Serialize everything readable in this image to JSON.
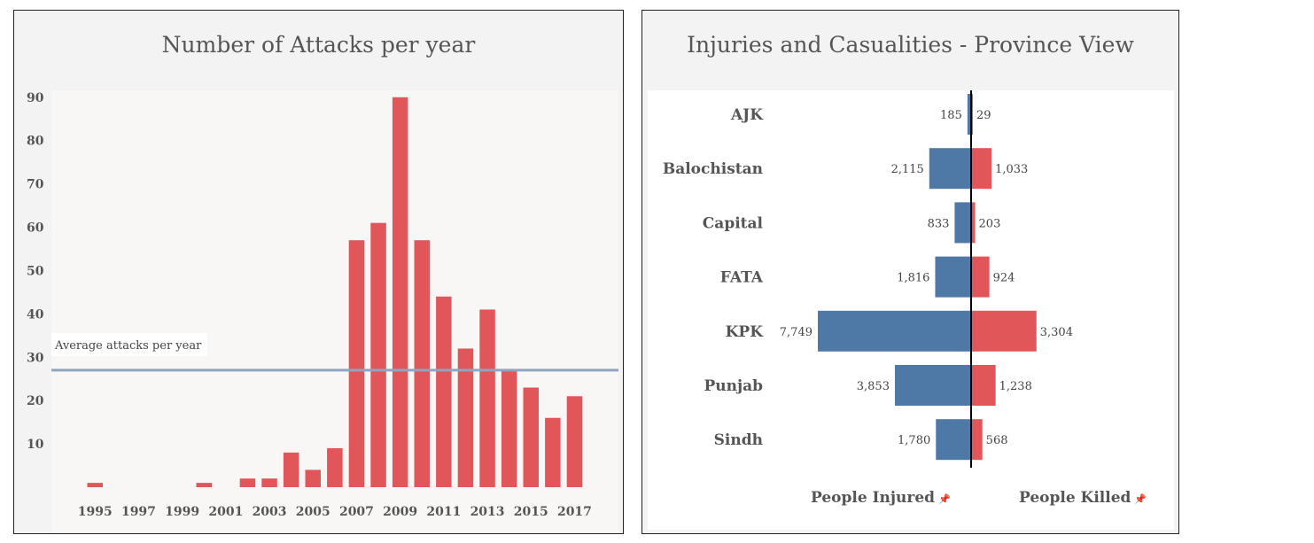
{
  "chart_data": [
    {
      "type": "bar",
      "title": "Number of Attacks per year",
      "xlabel": "",
      "ylabel": "",
      "ylim": [
        0,
        92
      ],
      "yticks": [
        10,
        20,
        30,
        40,
        50,
        60,
        70,
        80,
        90
      ],
      "xticks": [
        "1995",
        "1997",
        "1999",
        "2001",
        "2003",
        "2005",
        "2007",
        "2009",
        "2011",
        "2013",
        "2015",
        "2017"
      ],
      "categories": [
        "1995",
        "1996",
        "1997",
        "1998",
        "1999",
        "2000",
        "2001",
        "2002",
        "2003",
        "2004",
        "2005",
        "2006",
        "2007",
        "2008",
        "2009",
        "2010",
        "2011",
        "2012",
        "2013",
        "2014",
        "2015",
        "2016",
        "2017"
      ],
      "values": [
        1,
        0,
        0,
        0,
        0,
        1,
        0,
        2,
        2,
        8,
        4,
        9,
        57,
        61,
        90,
        57,
        44,
        32,
        41,
        27,
        23,
        16,
        21
      ],
      "reference_line": {
        "label": "Average attacks per year",
        "value": 27
      },
      "bar_color": "#e15759",
      "line_color": "#8ea4c0",
      "grid": false
    },
    {
      "type": "bar",
      "orientation": "diverging-horizontal",
      "title": "Injuries and Casualities - Province View",
      "categories": [
        "AJK",
        "Balochistan",
        "Capital",
        "FATA",
        "KPK",
        "Punjab",
        "Sindh"
      ],
      "series": [
        {
          "name": "People Injured",
          "values": [
            185,
            2115,
            833,
            1816,
            7749,
            3853,
            1780
          ],
          "labels": [
            "185",
            "2,115",
            "833",
            "1,816",
            "7,749",
            "3,853",
            "1,780"
          ],
          "color": "#4e79a7"
        },
        {
          "name": "People Killed",
          "values": [
            29,
            1033,
            203,
            924,
            3304,
            1238,
            568
          ],
          "labels": [
            "29",
            "1,033",
            "203",
            "924",
            "3,304",
            "1,238",
            "568"
          ],
          "color": "#e15759"
        }
      ],
      "grid": false
    }
  ],
  "legend": {
    "injured": "People Injured",
    "killed": "People Killed",
    "pin_icon": "pin-icon"
  }
}
